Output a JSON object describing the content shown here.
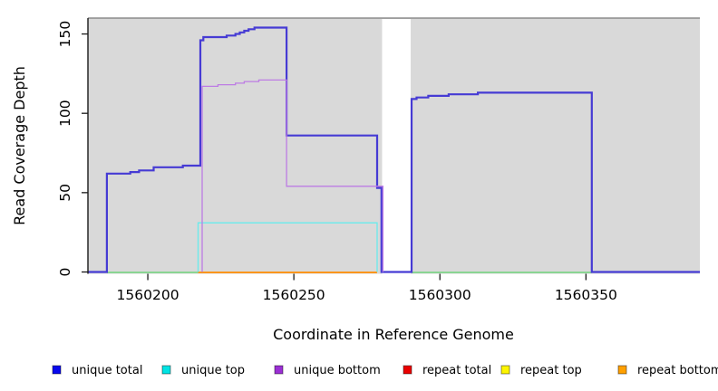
{
  "figure": {
    "xlabel": "Coordinate in Reference Genome",
    "ylabel": "Read Coverage Depth"
  },
  "legend": {
    "items": [
      {
        "label": "unique total",
        "color": "#0808ee"
      },
      {
        "label": "unique top",
        "color": "#00e4e4"
      },
      {
        "label": "unique bottom",
        "color": "#9b2fd4"
      },
      {
        "label": "repeat total",
        "color": "#ea0000"
      },
      {
        "label": "repeat top",
        "color": "#fdf500"
      },
      {
        "label": "repeat bottom",
        "color": "#ffa000"
      }
    ]
  },
  "chart_data": {
    "type": "line",
    "step": true,
    "title": "",
    "xlabel": "Coordinate in Reference Genome",
    "ylabel": "Read Coverage Depth",
    "xlim": [
      1560179.5,
      1560389
    ],
    "ylim": [
      0,
      160
    ],
    "x_ticks": [
      1560200,
      1560250,
      1560300,
      1560350
    ],
    "x_tick_labels": [
      "1560200",
      "1560250",
      "1560300",
      "1560350"
    ],
    "y_ticks": [
      0,
      50,
      100,
      150
    ],
    "y_tick_labels": [
      "0",
      "50",
      "100",
      "150"
    ],
    "grid": false,
    "legend_position": "bottom",
    "panel_bg": "#d9d9d9",
    "panel_border_color": "#8a8a8a",
    "masked_region": {
      "x1": 1560280.2,
      "x2": 1560290,
      "fill": "#ffffff"
    },
    "zero_level_segments": [
      {
        "color": "#7fd489",
        "x1": 1560186,
        "x2": 1560217.2
      },
      {
        "color": "#ff8c00",
        "x1": 1560217.2,
        "x2": 1560278.5
      },
      {
        "color": "#7fd489",
        "x1": 1560290.3,
        "x2": 1560352
      }
    ],
    "series": [
      {
        "name": "unique total",
        "color": "#463bd4",
        "width": 2.2,
        "draw": true,
        "points": [
          [
            1560179.5,
            0
          ],
          [
            1560186,
            0
          ],
          [
            1560186,
            62
          ],
          [
            1560194,
            62
          ],
          [
            1560194,
            63
          ],
          [
            1560197,
            63
          ],
          [
            1560197,
            64
          ],
          [
            1560202,
            64
          ],
          [
            1560202,
            66
          ],
          [
            1560212,
            66
          ],
          [
            1560212,
            67
          ],
          [
            1560218,
            67
          ],
          [
            1560218,
            146
          ],
          [
            1560219,
            146
          ],
          [
            1560219,
            148
          ],
          [
            1560227,
            148
          ],
          [
            1560227,
            149
          ],
          [
            1560230,
            149
          ],
          [
            1560230,
            150
          ],
          [
            1560231.5,
            150
          ],
          [
            1560231.5,
            151
          ],
          [
            1560233,
            151
          ],
          [
            1560233,
            152
          ],
          [
            1560234.5,
            152
          ],
          [
            1560234.5,
            153
          ],
          [
            1560236.5,
            153
          ],
          [
            1560236.5,
            154
          ],
          [
            1560247.5,
            154
          ],
          [
            1560247.5,
            86
          ],
          [
            1560278.5,
            86
          ],
          [
            1560278.5,
            53
          ],
          [
            1560280,
            53
          ],
          [
            1560280,
            0
          ],
          [
            1560290.3,
            0
          ],
          [
            1560290.3,
            109
          ],
          [
            1560292,
            109
          ],
          [
            1560292,
            110
          ],
          [
            1560296,
            110
          ],
          [
            1560296,
            111
          ],
          [
            1560303,
            111
          ],
          [
            1560303,
            112
          ],
          [
            1560313,
            112
          ],
          [
            1560313,
            113
          ],
          [
            1560352,
            113
          ],
          [
            1560352,
            0
          ],
          [
            1560389,
            0
          ]
        ]
      },
      {
        "name": "unique top",
        "color": "#68ebec",
        "width": 1.3,
        "draw": true,
        "points": [
          [
            1560217.2,
            0
          ],
          [
            1560217.2,
            31
          ],
          [
            1560278.5,
            31
          ],
          [
            1560278.5,
            0
          ]
        ]
      },
      {
        "name": "unique bottom",
        "color": "#bd7ce4",
        "width": 1.3,
        "draw": true,
        "points": [
          [
            1560218.6,
            0
          ],
          [
            1560218.6,
            117
          ],
          [
            1560224,
            117
          ],
          [
            1560224,
            118
          ],
          [
            1560230,
            118
          ],
          [
            1560230,
            119
          ],
          [
            1560233,
            119
          ],
          [
            1560233,
            120
          ],
          [
            1560238,
            120
          ],
          [
            1560238,
            121
          ],
          [
            1560247.5,
            121
          ],
          [
            1560247.5,
            54
          ],
          [
            1560280.5,
            54
          ],
          [
            1560280.5,
            0
          ]
        ]
      },
      {
        "name": "repeat total",
        "color": "#ea0000",
        "width": 1.3,
        "draw": false,
        "points": [
          [
            1560179.5,
            0
          ],
          [
            1560389,
            0
          ]
        ]
      },
      {
        "name": "repeat top",
        "color": "#fdf500",
        "width": 1.3,
        "draw": false,
        "points": [
          [
            1560179.5,
            0
          ],
          [
            1560389,
            0
          ]
        ]
      },
      {
        "name": "repeat bottom",
        "color": "#ff8c00",
        "width": 1.3,
        "draw": false,
        "points": [
          [
            1560179.5,
            0
          ],
          [
            1560389,
            0
          ]
        ]
      }
    ]
  }
}
